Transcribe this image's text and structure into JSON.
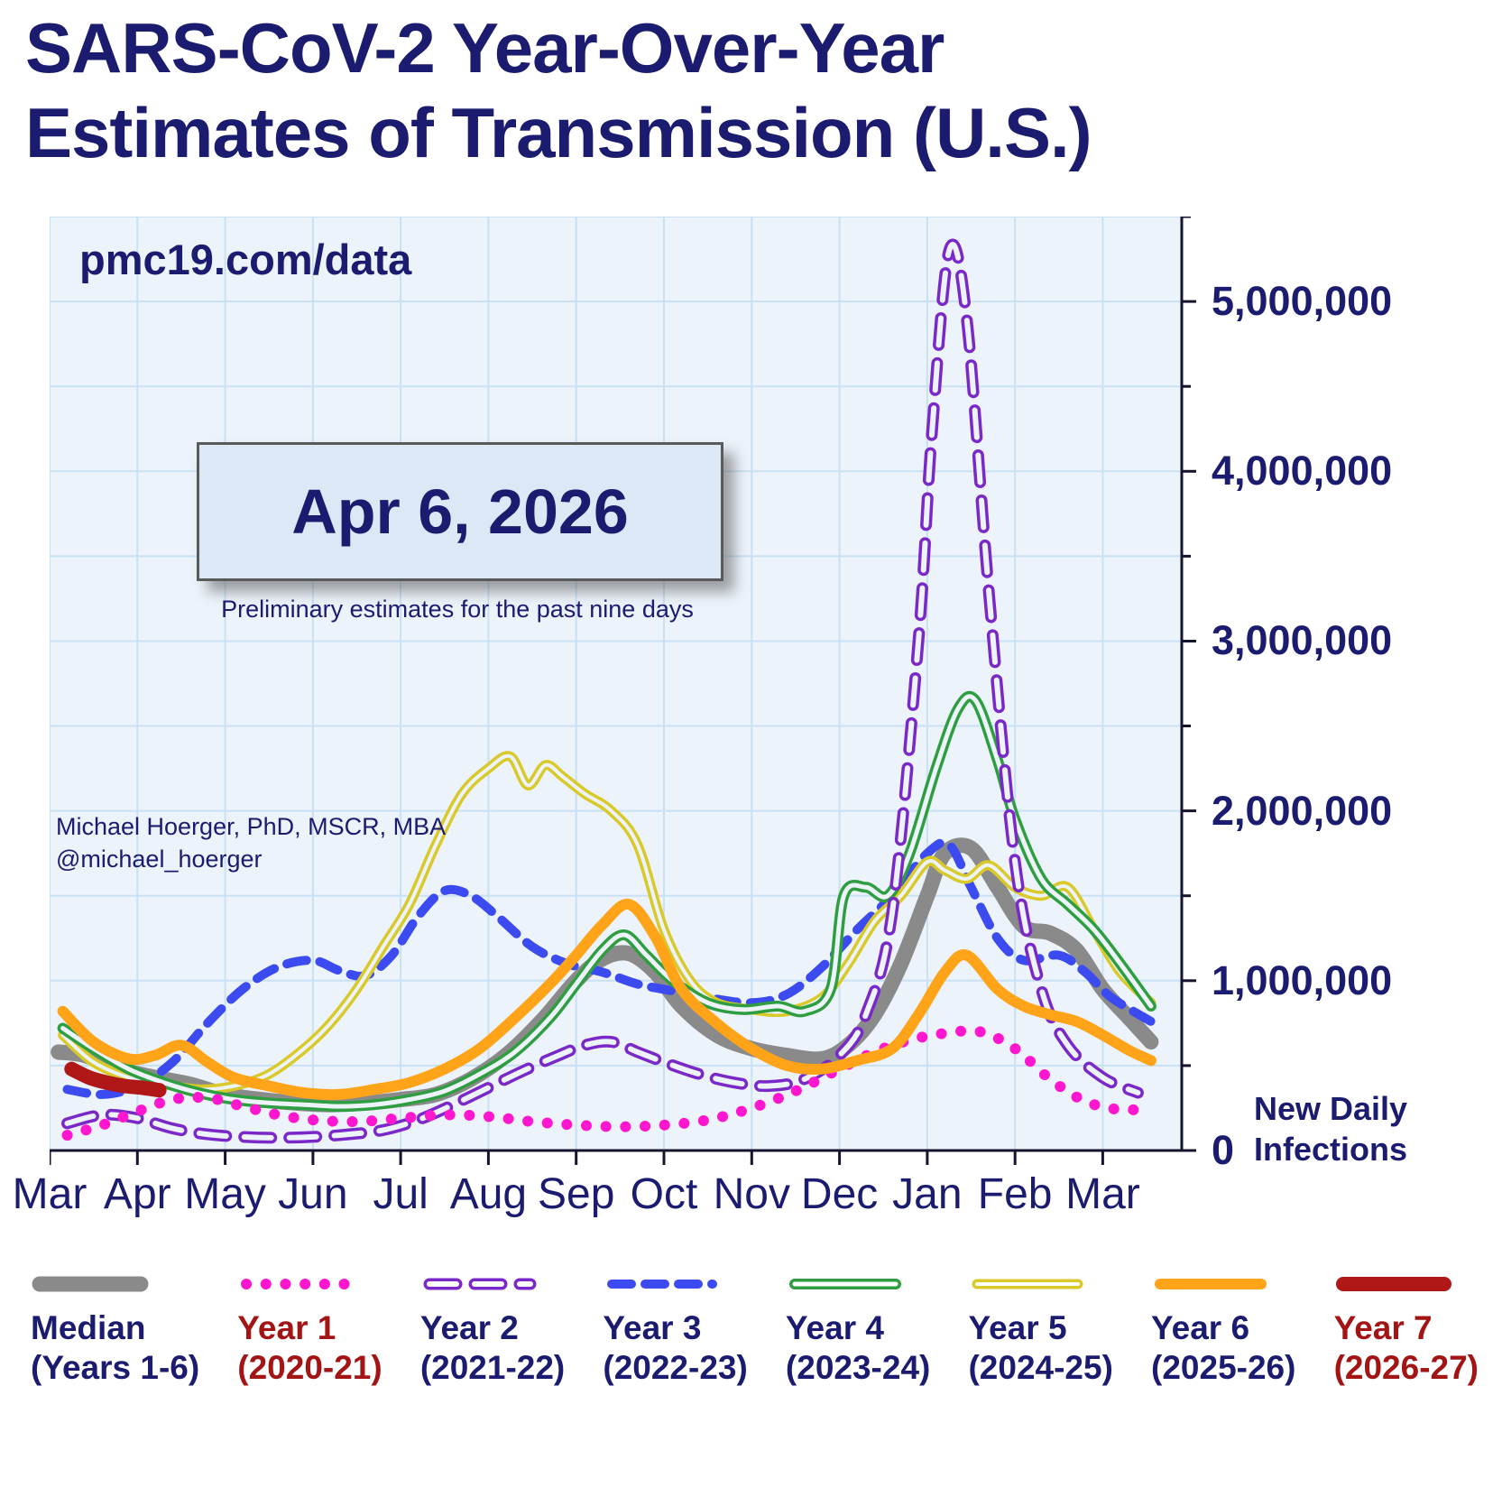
{
  "page": {
    "title_line1": "SARS-CoV-2 Year-Over-Year",
    "title_line2": "Estimates of Transmission (U.S.)",
    "watermark": "pmc19.com/data",
    "date_label": "Apr 6, 2026",
    "date_subtitle": "Preliminary estimates for the past nine days",
    "credit_line1": "Michael Hoerger, PhD, MSCR, MBA",
    "credit_line2": "@michael_hoerger",
    "y_axis_title_line1": "New Daily",
    "y_axis_title_line2": "Infections"
  },
  "colors": {
    "navy": "#1b1b70",
    "plot_bg": "#ecf3fb",
    "gridline": "#c9e1f4",
    "axis": "#15152e",
    "datebox_bg": "#dce8f5"
  },
  "chart_data": {
    "type": "line",
    "title": "SARS-CoV-2 Year-Over-Year Estimates of Transmission (U.S.)",
    "xlabel": "",
    "ylabel": "New Daily Infections",
    "grid": true,
    "legend_position": "bottom",
    "x_axis": {
      "unit": "months from March",
      "max": 12.9,
      "tick_labels": [
        "Mar",
        "Apr",
        "May",
        "Jun",
        "Jul",
        "Aug",
        "Sep",
        "Oct",
        "Nov",
        "Dec",
        "Jan",
        "Feb",
        "Mar"
      ]
    },
    "y_axis": {
      "range": [
        0,
        5500000
      ],
      "gridline_interval": 500000,
      "tick_values": [
        0,
        1000000,
        2000000,
        3000000,
        4000000,
        5000000
      ],
      "tick_labels": [
        "0",
        "1,000,000",
        "2,000,000",
        "3,000,000",
        "4,000,000",
        "5,000,000"
      ]
    },
    "series": [
      {
        "name": "Median",
        "legend_line1": "Median",
        "legend_line2": "(Years 1-6)",
        "label_color": "#1b1b70",
        "color": "#8a8a8a",
        "style": "solid",
        "width": 17,
        "x": [
          0.1,
          0.4,
          0.8,
          1.2,
          1.6,
          2.0,
          2.4,
          2.8,
          3.2,
          3.6,
          4.0,
          4.4,
          4.8,
          5.2,
          5.6,
          6.0,
          6.3,
          6.6,
          6.9,
          7.2,
          7.6,
          8.0,
          8.4,
          8.8,
          9.1,
          9.4,
          9.7,
          10.0,
          10.2,
          10.5,
          10.8,
          11.1,
          11.4,
          11.7,
          12.0,
          12.3,
          12.55
        ],
        "values": [
          580000,
          560000,
          480000,
          430000,
          390000,
          330000,
          300000,
          280000,
          270000,
          280000,
          300000,
          330000,
          420000,
          560000,
          760000,
          1000000,
          1130000,
          1160000,
          1050000,
          850000,
          680000,
          600000,
          560000,
          540000,
          620000,
          800000,
          1100000,
          1500000,
          1750000,
          1780000,
          1550000,
          1320000,
          1280000,
          1180000,
          950000,
          780000,
          640000
        ]
      },
      {
        "name": "Year 3",
        "legend_line1": "Year 3",
        "legend_line2": "(2022-23)",
        "label_color": "#1b1b70",
        "color": "#3b4bf0",
        "style": "dashed",
        "width": 10,
        "x": [
          0.2,
          0.6,
          1.0,
          1.4,
          1.8,
          2.2,
          2.6,
          3.0,
          3.3,
          3.6,
          3.9,
          4.2,
          4.5,
          4.8,
          5.1,
          5.5,
          5.9,
          6.3,
          6.7,
          7.1,
          7.5,
          8.0,
          8.4,
          8.8,
          9.2,
          9.6,
          10.0,
          10.25,
          10.5,
          10.8,
          11.1,
          11.5,
          11.8,
          12.1,
          12.55
        ],
        "values": [
          360000,
          330000,
          380000,
          520000,
          750000,
          950000,
          1080000,
          1120000,
          1060000,
          1030000,
          1150000,
          1380000,
          1530000,
          1500000,
          1380000,
          1200000,
          1100000,
          1050000,
          980000,
          940000,
          900000,
          870000,
          920000,
          1080000,
          1300000,
          1500000,
          1750000,
          1800000,
          1550000,
          1250000,
          1120000,
          1150000,
          1050000,
          900000,
          760000
        ]
      },
      {
        "name": "Year 5",
        "legend_line1": "Year 5",
        "legend_line2": "(2024-25)",
        "label_color": "#1b1b70",
        "color": "#d9c929",
        "style": "double",
        "width": 11,
        "x": [
          0.15,
          0.5,
          0.9,
          1.3,
          1.7,
          2.1,
          2.5,
          2.9,
          3.2,
          3.5,
          3.8,
          4.1,
          4.4,
          4.7,
          5.0,
          5.25,
          5.45,
          5.65,
          5.85,
          6.1,
          6.4,
          6.7,
          7.0,
          7.3,
          7.6,
          8.0,
          8.4,
          8.8,
          9.1,
          9.4,
          9.7,
          10.0,
          10.2,
          10.45,
          10.7,
          11.0,
          11.3,
          11.6,
          11.9,
          12.2,
          12.55
        ],
        "values": [
          680000,
          520000,
          430000,
          390000,
          360000,
          380000,
          450000,
          600000,
          750000,
          950000,
          1200000,
          1450000,
          1800000,
          2100000,
          2250000,
          2320000,
          2150000,
          2270000,
          2200000,
          2100000,
          2000000,
          1800000,
          1300000,
          1000000,
          870000,
          830000,
          820000,
          900000,
          1100000,
          1350000,
          1500000,
          1700000,
          1650000,
          1600000,
          1680000,
          1550000,
          1500000,
          1550000,
          1300000,
          1050000,
          870000
        ]
      },
      {
        "name": "Year 4",
        "legend_line1": "Year 4",
        "legend_line2": "(2023-24)",
        "label_color": "#1b1b70",
        "color": "#2e9e40",
        "style": "double",
        "width": 12,
        "x": [
          0.15,
          0.5,
          0.9,
          1.3,
          1.7,
          2.1,
          2.5,
          2.9,
          3.3,
          3.7,
          4.1,
          4.5,
          4.9,
          5.3,
          5.7,
          6.0,
          6.3,
          6.55,
          6.8,
          7.1,
          7.5,
          7.9,
          8.3,
          8.6,
          8.9,
          9.05,
          9.3,
          9.55,
          9.8,
          10.1,
          10.35,
          10.55,
          10.8,
          11.0,
          11.3,
          11.6,
          11.9,
          12.2,
          12.55
        ],
        "values": [
          720000,
          600000,
          480000,
          400000,
          340000,
          300000,
          280000,
          270000,
          260000,
          270000,
          300000,
          350000,
          450000,
          580000,
          780000,
          980000,
          1180000,
          1270000,
          1150000,
          1000000,
          870000,
          830000,
          850000,
          820000,
          950000,
          1500000,
          1550000,
          1500000,
          1750000,
          2250000,
          2600000,
          2650000,
          2300000,
          1950000,
          1600000,
          1450000,
          1300000,
          1100000,
          850000
        ]
      },
      {
        "name": "Year 2",
        "legend_line1": "Year 2",
        "legend_line2": "(2021-22)",
        "label_color": "#1b1b70",
        "color": "#7a28c8",
        "style": "hollow-dash",
        "width": 13,
        "x": [
          0.2,
          0.6,
          1.0,
          1.4,
          1.8,
          2.2,
          2.6,
          3.0,
          3.4,
          3.8,
          4.2,
          4.6,
          5.0,
          5.4,
          5.8,
          6.1,
          6.4,
          6.7,
          7.0,
          7.4,
          7.8,
          8.2,
          8.6,
          9.0,
          9.3,
          9.6,
          9.9,
          10.05,
          10.25,
          10.45,
          10.7,
          11.0,
          11.3,
          11.6,
          12.0,
          12.4
        ],
        "values": [
          160000,
          210000,
          190000,
          130000,
          95000,
          80000,
          75000,
          80000,
          95000,
          120000,
          180000,
          270000,
          370000,
          470000,
          560000,
          620000,
          640000,
          580000,
          520000,
          450000,
          400000,
          380000,
          420000,
          560000,
          800000,
          1400000,
          3000000,
          4200000,
          5300000,
          4900000,
          3300000,
          1700000,
          950000,
          620000,
          430000,
          340000
        ]
      },
      {
        "name": "Year 1",
        "legend_line1": "Year 1",
        "legend_line2": "(2020-21)",
        "label_color": "#a31515",
        "color": "#ff17cf",
        "style": "dotted",
        "width": 12,
        "x": [
          0.2,
          0.6,
          1.0,
          1.4,
          1.8,
          2.2,
          2.6,
          3.0,
          3.5,
          4.0,
          4.5,
          5.0,
          5.5,
          6.0,
          6.5,
          7.0,
          7.5,
          8.0,
          8.5,
          9.0,
          9.4,
          9.8,
          10.2,
          10.6,
          11.0,
          11.4,
          11.8,
          12.2,
          12.55
        ],
        "values": [
          90000,
          150000,
          230000,
          300000,
          310000,
          260000,
          210000,
          180000,
          170000,
          190000,
          210000,
          200000,
          170000,
          150000,
          140000,
          150000,
          180000,
          250000,
          350000,
          480000,
          580000,
          650000,
          690000,
          700000,
          600000,
          420000,
          290000,
          240000,
          250000
        ]
      },
      {
        "name": "Year 6",
        "legend_line1": "Year 6",
        "legend_line2": "(2025-26)",
        "label_color": "#1b1b70",
        "color": "#ffa318",
        "style": "solid",
        "width": 12,
        "x": [
          0.15,
          0.5,
          0.9,
          1.2,
          1.5,
          1.8,
          2.1,
          2.5,
          2.9,
          3.3,
          3.7,
          4.1,
          4.5,
          4.9,
          5.3,
          5.7,
          6.0,
          6.3,
          6.6,
          6.9,
          7.2,
          7.6,
          8.0,
          8.4,
          8.8,
          9.2,
          9.6,
          9.9,
          10.2,
          10.45,
          10.8,
          11.1,
          11.4,
          11.7,
          12.0,
          12.3,
          12.55
        ],
        "values": [
          820000,
          640000,
          540000,
          560000,
          620000,
          520000,
          430000,
          380000,
          340000,
          330000,
          360000,
          400000,
          480000,
          600000,
          780000,
          980000,
          1150000,
          1330000,
          1450000,
          1260000,
          950000,
          750000,
          600000,
          500000,
          480000,
          530000,
          600000,
          800000,
          1050000,
          1150000,
          950000,
          850000,
          800000,
          760000,
          680000,
          590000,
          530000
        ]
      },
      {
        "name": "Year 7",
        "legend_line1": "Year 7",
        "legend_line2": "(2026-27)",
        "label_color": "#a31515",
        "color": "#b01818",
        "style": "solid",
        "width": 16,
        "x": [
          0.25,
          0.45,
          0.65,
          0.85,
          1.05,
          1.25
        ],
        "values": [
          480000,
          430000,
          400000,
          380000,
          370000,
          355000
        ]
      }
    ]
  }
}
